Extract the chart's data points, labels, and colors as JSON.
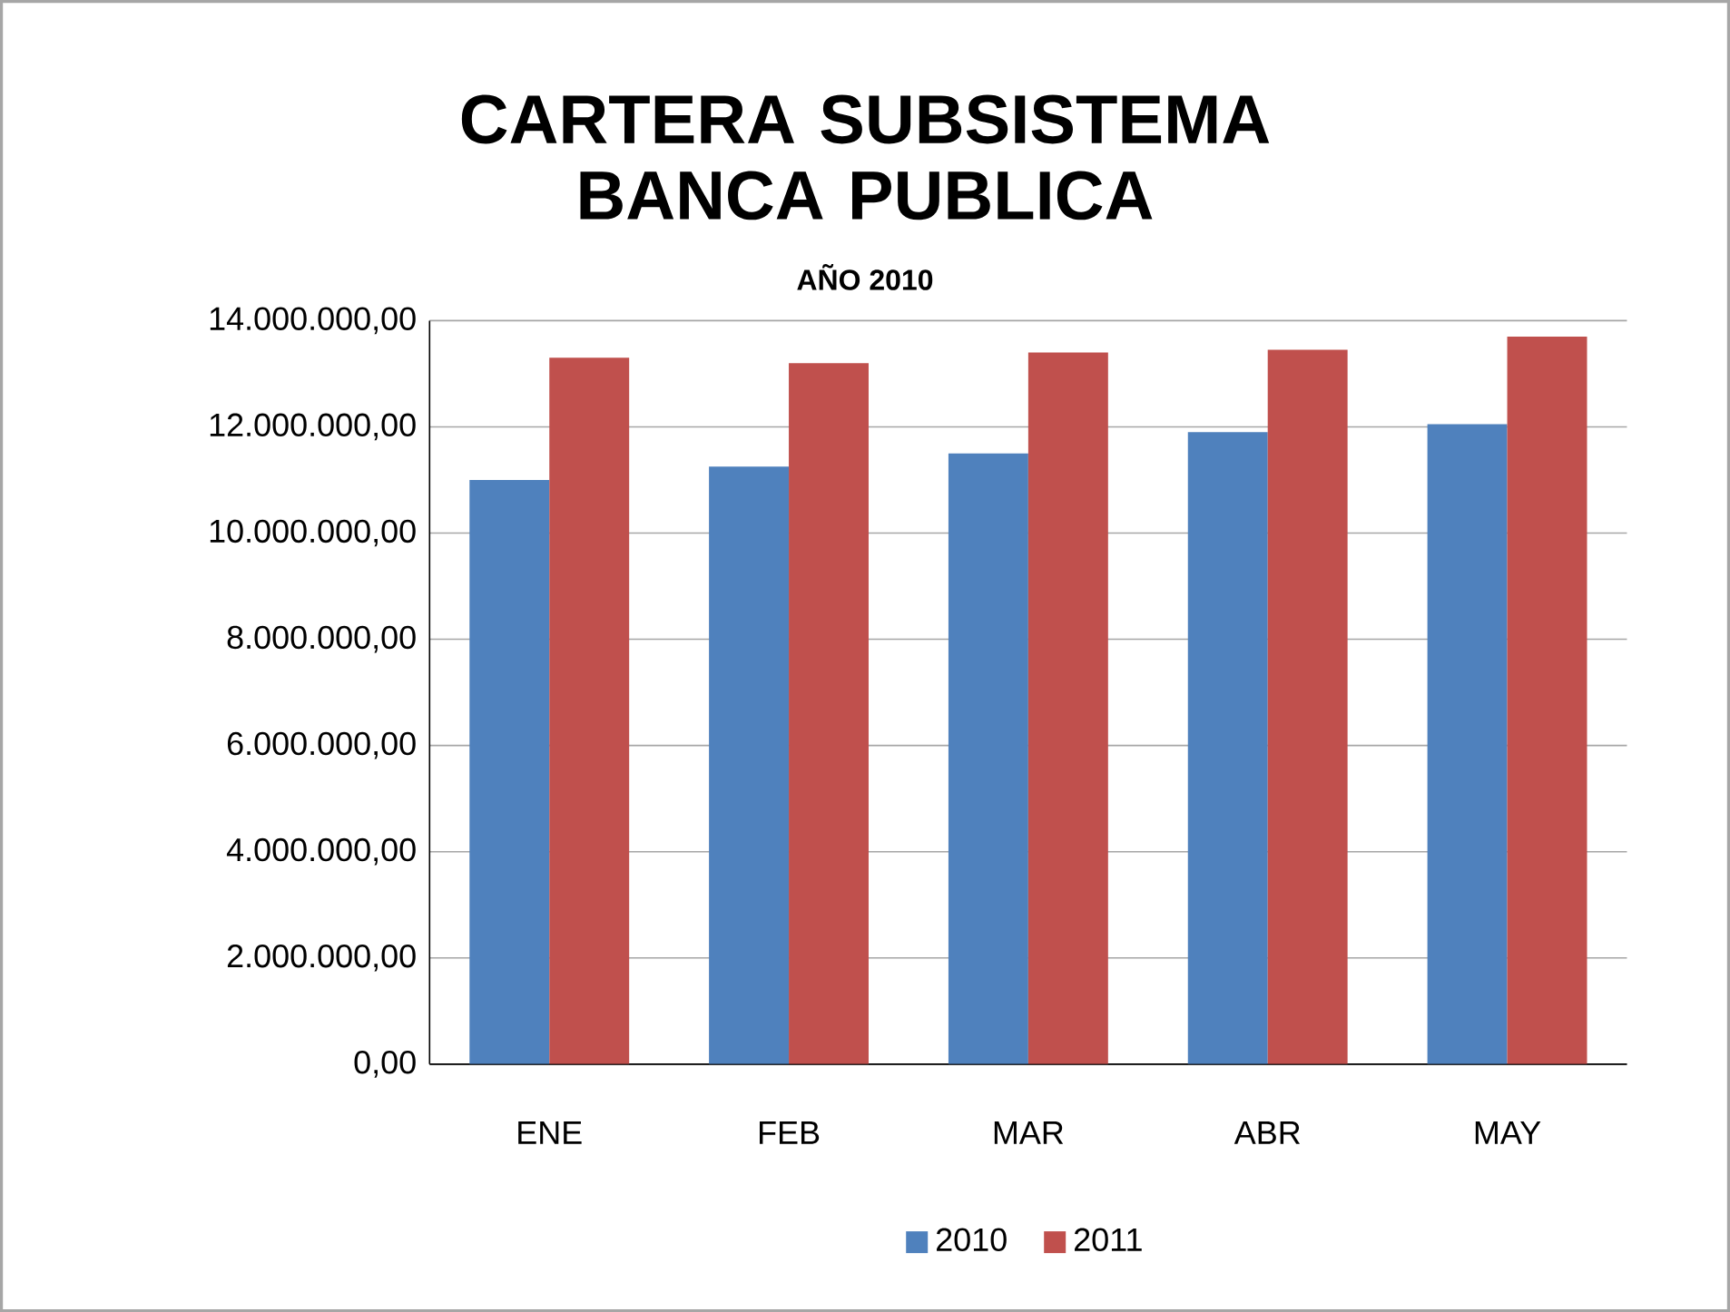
{
  "chart_data": {
    "type": "bar",
    "title": "CARTERA SUBSISTEMA BANCA PUBLICA",
    "subtitle": "AÑO 2010",
    "categories": [
      "ENE",
      "FEB",
      "MAR",
      "ABR",
      "MAY"
    ],
    "series": [
      {
        "name": "2010",
        "color": "#4f81bd",
        "values": [
          11000000,
          11250000,
          11500000,
          11900000,
          12050000
        ]
      },
      {
        "name": "2011",
        "color": "#c0504d",
        "values": [
          13300000,
          13200000,
          13400000,
          13450000,
          13700000
        ]
      }
    ],
    "ylim": [
      0,
      14000000
    ],
    "yticks": [
      {
        "value": 0,
        "label": "0,00"
      },
      {
        "value": 2000000,
        "label": "2.000.000,00"
      },
      {
        "value": 4000000,
        "label": "4.000.000,00"
      },
      {
        "value": 6000000,
        "label": "6.000.000,00"
      },
      {
        "value": 8000000,
        "label": "8.000.000,00"
      },
      {
        "value": 10000000,
        "label": "10.000.000,00"
      },
      {
        "value": 12000000,
        "label": "12.000.000,00"
      },
      {
        "value": 14000000,
        "label": "14.000.000,00"
      }
    ],
    "grid": "y",
    "legend": "bottom"
  }
}
